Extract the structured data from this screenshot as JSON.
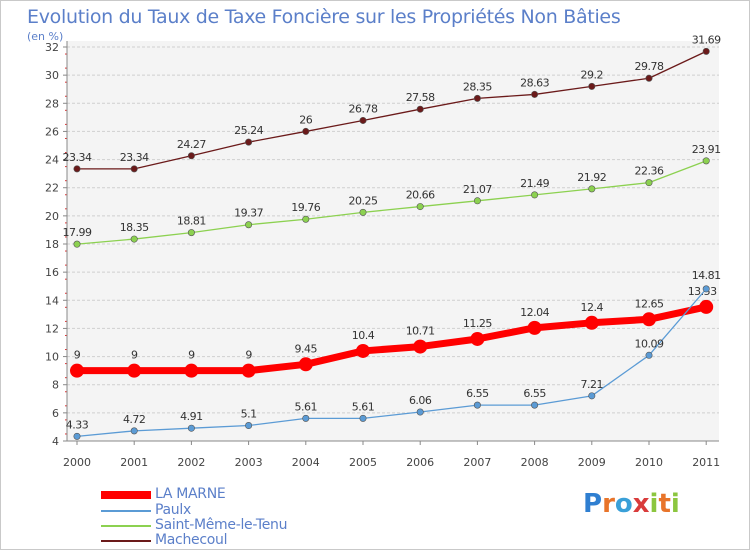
{
  "chart_data": {
    "type": "line",
    "title": "Evolution du Taux de Taxe Foncière sur les Propriétés Non Bâties",
    "subtitle": "(en %)",
    "x": [
      "2000",
      "2001",
      "2002",
      "2003",
      "2004",
      "2005",
      "2006",
      "2007",
      "2008",
      "2009",
      "2010",
      "2011"
    ],
    "ylim": [
      4,
      32
    ],
    "yticks": [
      4,
      6,
      8,
      10,
      12,
      14,
      16,
      18,
      20,
      22,
      24,
      26,
      28,
      30,
      32
    ],
    "grid": "horizontal",
    "legend_position": "bottom-left",
    "series": [
      {
        "name": "Machecoul",
        "color": "#6b1a1a",
        "values": [
          23.34,
          23.34,
          24.27,
          25.24,
          26,
          26.78,
          27.58,
          28.35,
          28.63,
          29.2,
          29.78,
          31.69
        ],
        "labels": [
          "23.34",
          "23.34",
          "24.27",
          "25.24",
          "26",
          "26.78",
          "27.58",
          "28.35",
          "28.63",
          "29.2",
          "29.78",
          "31.69"
        ]
      },
      {
        "name": "Saint-Même-le-Tenu",
        "color": "#8cd150",
        "values": [
          17.99,
          18.35,
          18.81,
          19.37,
          19.76,
          20.25,
          20.66,
          21.07,
          21.49,
          21.92,
          22.36,
          23.91
        ],
        "labels": [
          "17.99",
          "18.35",
          "18.81",
          "19.37",
          "19.76",
          "20.25",
          "20.66",
          "21.07",
          "21.49",
          "21.92",
          "22.36",
          "23.91"
        ]
      },
      {
        "name": "LA MARNE",
        "color": "#ff0000",
        "values": [
          9,
          9,
          9,
          9,
          9.45,
          10.4,
          10.71,
          11.25,
          12.04,
          12.4,
          12.65,
          13.53
        ],
        "labels": [
          "9",
          "9",
          "9",
          "9",
          "9.45",
          "10.4",
          "10.71",
          "11.25",
          "12.04",
          "12.4",
          "12.65",
          "13.53"
        ]
      },
      {
        "name": "Paulx",
        "color": "#5b9bd5",
        "values": [
          4.33,
          4.72,
          4.91,
          5.1,
          5.61,
          5.61,
          6.06,
          6.55,
          6.55,
          7.21,
          10.09,
          14.81
        ],
        "labels": [
          "4.33",
          "4.72",
          "4.91",
          "5.1",
          "5.61",
          "5.61",
          "6.06",
          "6.55",
          "6.55",
          "7.21",
          "10.09",
          "14.81"
        ]
      }
    ],
    "legend": [
      "LA MARNE",
      "Paulx",
      "Saint-Même-le-Tenu",
      "Machecoul"
    ]
  },
  "logo": {
    "text": "Proxiti"
  }
}
